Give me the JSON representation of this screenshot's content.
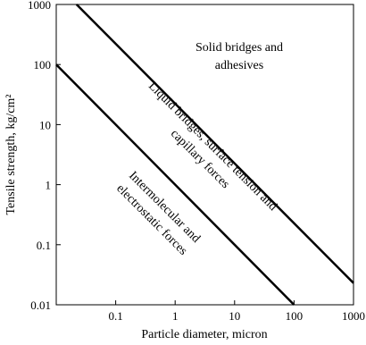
{
  "chart_data": {
    "type": "line",
    "x_label": "Particle diameter, micron",
    "y_label": "Tensile strength, kg/cm²",
    "xlog": true,
    "ylog": true,
    "xlim": [
      0.01,
      1000
    ],
    "ylim": [
      0.01,
      1000
    ],
    "xticks": [
      0.1,
      1,
      10,
      100,
      1000
    ],
    "yticks": [
      0.01,
      0.1,
      1,
      10,
      100,
      1000
    ],
    "series": [
      {
        "color": "#000000",
        "x": [
          0.022,
          1000
        ],
        "values": [
          1000,
          0.023
        ]
      },
      {
        "color": "#000000",
        "x": [
          0.01,
          100
        ],
        "values": [
          100,
          0.01
        ]
      }
    ],
    "annotations": [
      {
        "lines": [
          "Solid bridges and",
          "adhesives"
        ]
      },
      {
        "lines": [
          "Liquid bridges, surface tension and",
          "capillary forces"
        ]
      },
      {
        "lines": [
          "Intermolecular and",
          "electrostatic forces"
        ]
      }
    ]
  }
}
